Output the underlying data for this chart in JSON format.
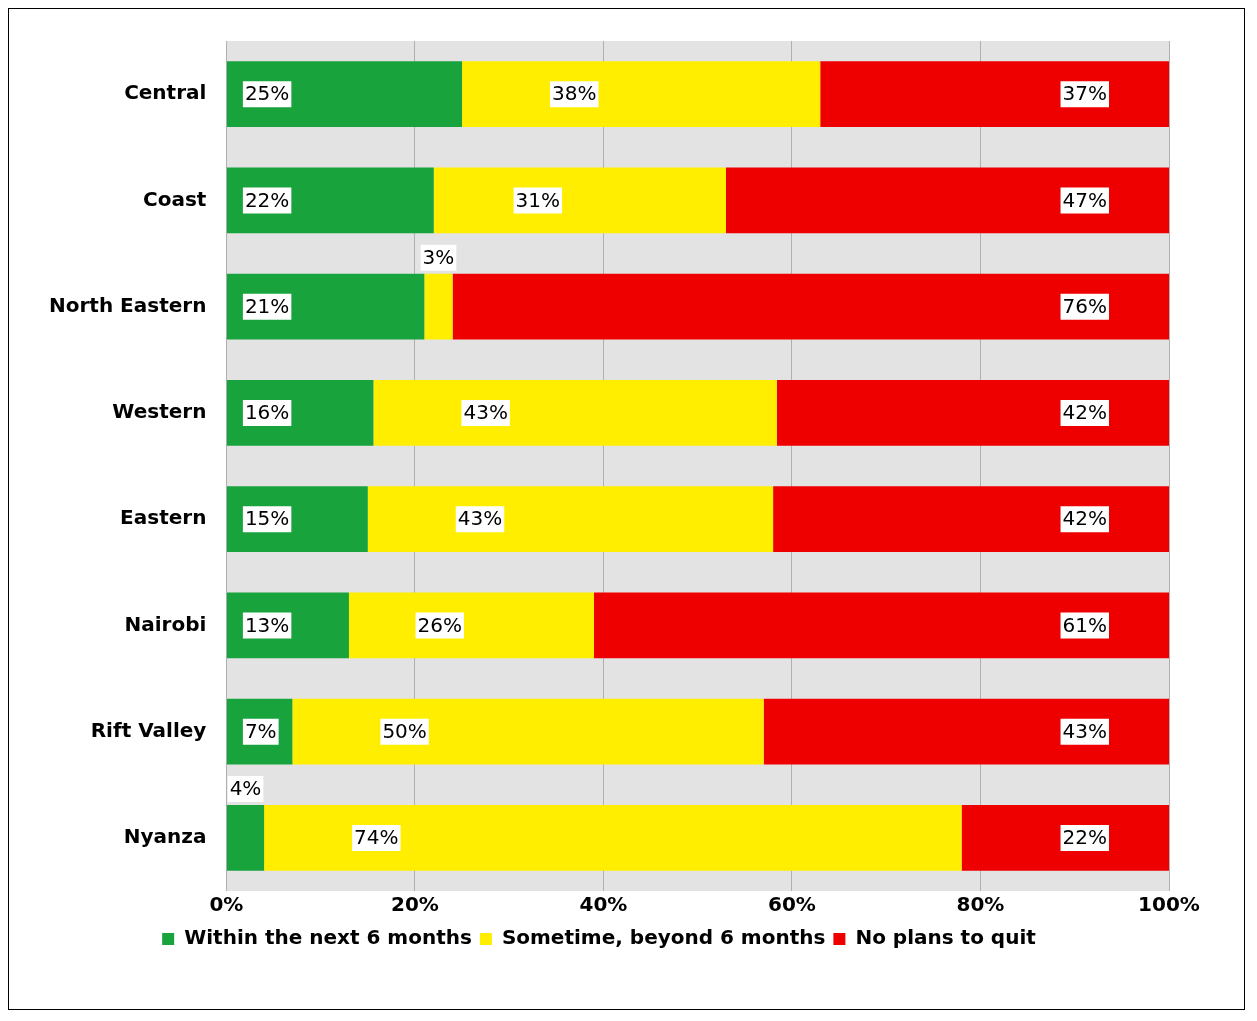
{
  "chart_data": {
    "type": "bar",
    "orientation": "horizontal",
    "stacked": true,
    "categories": [
      "Central",
      "Coast",
      "North Eastern",
      "Western",
      "Eastern",
      "Nairobi",
      "Rift Valley",
      "Nyanza"
    ],
    "series": [
      {
        "name": "Within the next 6 months",
        "color": "#19a33c",
        "values": [
          25,
          22,
          21,
          15.6,
          15,
          13,
          7,
          4
        ],
        "value_labels": [
          "25%",
          "22%",
          "21%",
          "16%",
          "15%",
          "13%",
          "7%",
          "4%"
        ]
      },
      {
        "name": "Sometime, beyond 6 months",
        "color": "#ffee00",
        "values": [
          38,
          31,
          3,
          42.8,
          43,
          26,
          50,
          74
        ],
        "value_labels": [
          "38%",
          "31%",
          "3%",
          "43%",
          "43%",
          "26%",
          "50%",
          "74%"
        ]
      },
      {
        "name": "No plans to quit",
        "color": "#ee0000",
        "values": [
          37,
          47,
          76,
          41.6,
          42,
          61,
          43,
          22
        ],
        "value_labels": [
          "37%",
          "47%",
          "76%",
          "42%",
          "42%",
          "61%",
          "43%",
          "22%"
        ]
      }
    ],
    "xlim": [
      0,
      100
    ],
    "xticks": [
      {
        "value": 0,
        "label": "0%"
      },
      {
        "value": 20,
        "label": "20%"
      },
      {
        "value": 40,
        "label": "40%"
      },
      {
        "value": 60,
        "label": "60%"
      },
      {
        "value": 80,
        "label": "80%"
      },
      {
        "value": 100,
        "label": "100%"
      }
    ],
    "grid": "x",
    "legend": "bottom"
  }
}
